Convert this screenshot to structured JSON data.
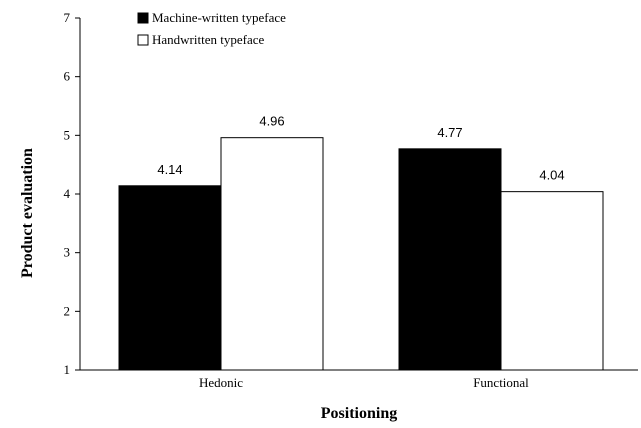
{
  "chart_data": {
    "type": "bar",
    "categories": [
      "Hedonic",
      "Functional"
    ],
    "series": [
      {
        "name": "Machine-written typeface",
        "values": [
          4.14,
          4.77
        ],
        "color": "#000000"
      },
      {
        "name": "Handwritten typeface",
        "values": [
          4.96,
          4.04
        ],
        "color": "#ffffff"
      }
    ],
    "value_labels": [
      [
        "4.14",
        "4.77"
      ],
      [
        "4.96",
        "4.04"
      ]
    ],
    "xlabel": "Positioning",
    "ylabel": "Product evaluation",
    "ylim": [
      1,
      7
    ],
    "yticks": [
      "1",
      "2",
      "3",
      "4",
      "5",
      "6",
      "7"
    ],
    "grid": false,
    "legend_position": "top-left"
  }
}
